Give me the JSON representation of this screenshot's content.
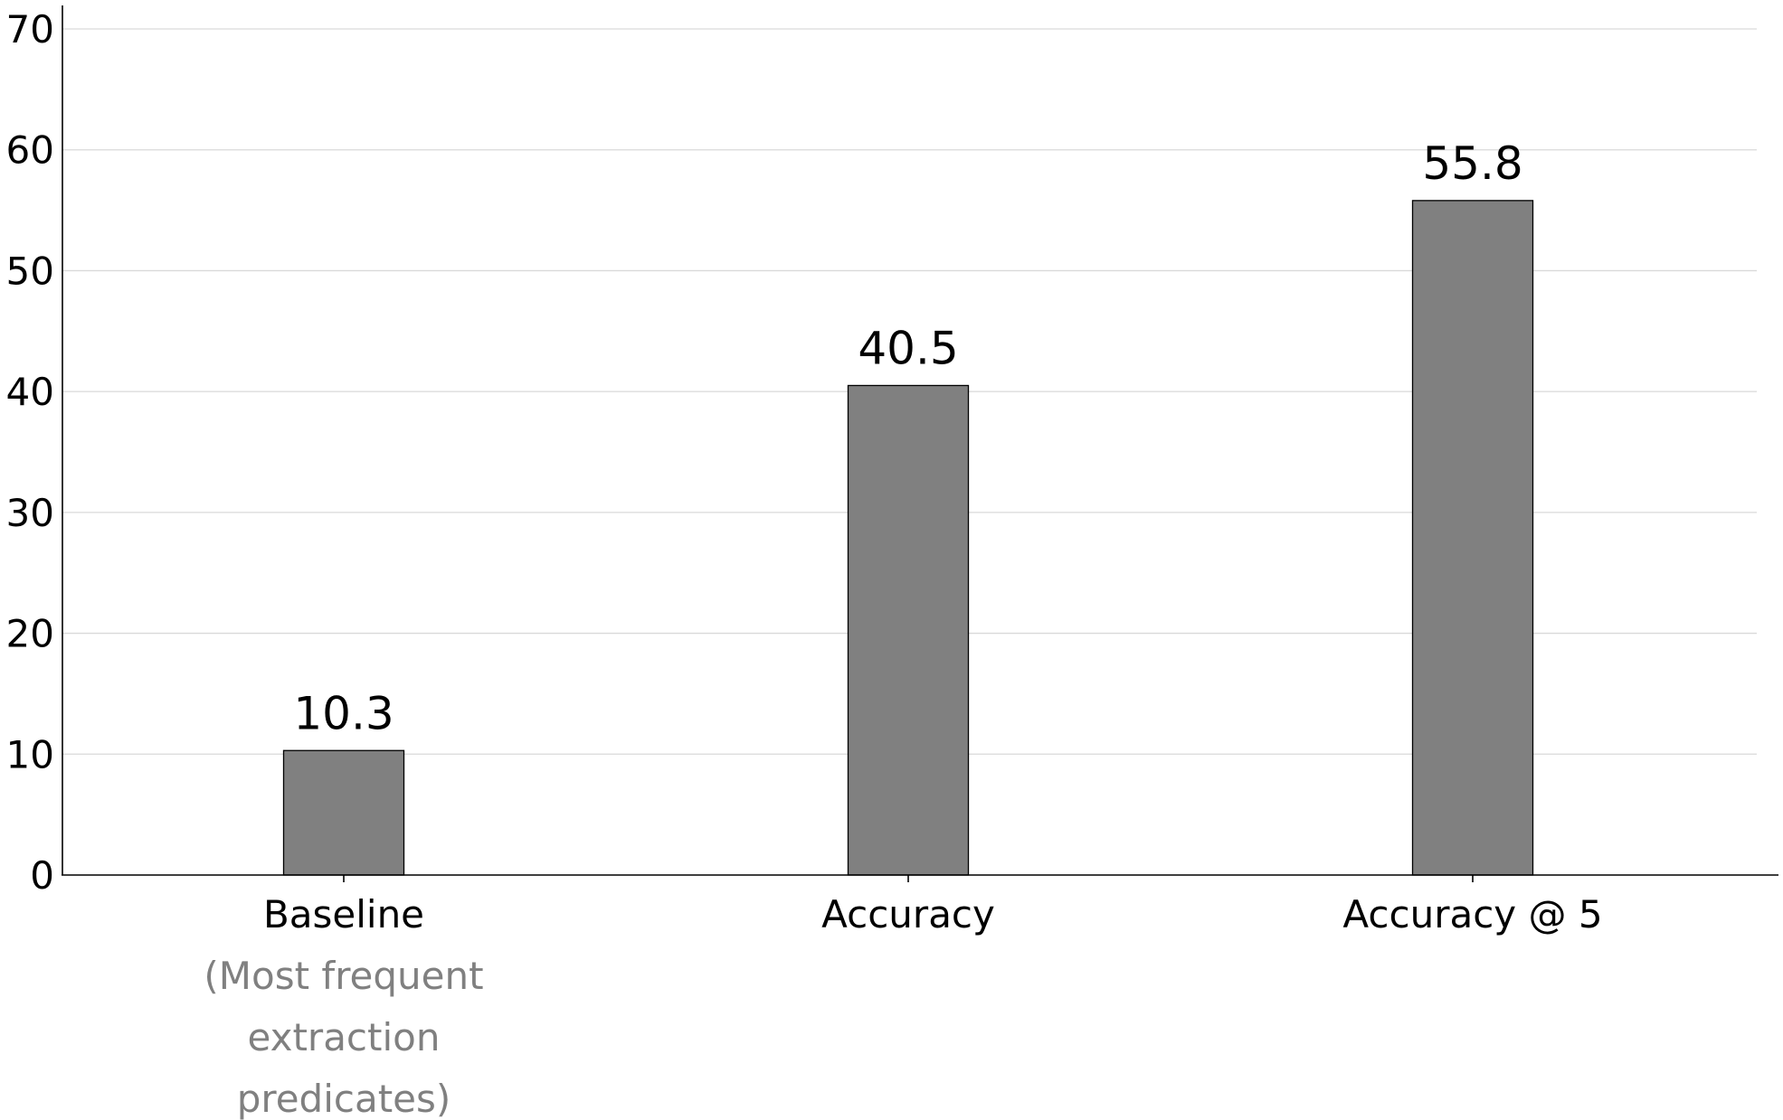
{
  "chart_data": {
    "type": "bar",
    "categories": [
      "Baseline",
      "Accuracy",
      "Accuracy @ 5"
    ],
    "category_sublabels": [
      [
        "(Most frequent",
        "extraction",
        "predicates)"
      ],
      [],
      []
    ],
    "values": [
      10.3,
      40.5,
      55.8
    ],
    "data_labels": [
      "10.3",
      "40.5",
      "55.8"
    ],
    "title": "",
    "xlabel": "",
    "ylabel": "",
    "ylim": [
      0,
      70
    ],
    "yticks": [
      0,
      10,
      20,
      30,
      40,
      50,
      60,
      70
    ],
    "grid": "horizontal",
    "legend": "none",
    "colors": {
      "bar_fill": "#808080",
      "bar_edge": "#000000",
      "gridline": "#d9d9d9",
      "sublabel_text": "#808080"
    }
  }
}
